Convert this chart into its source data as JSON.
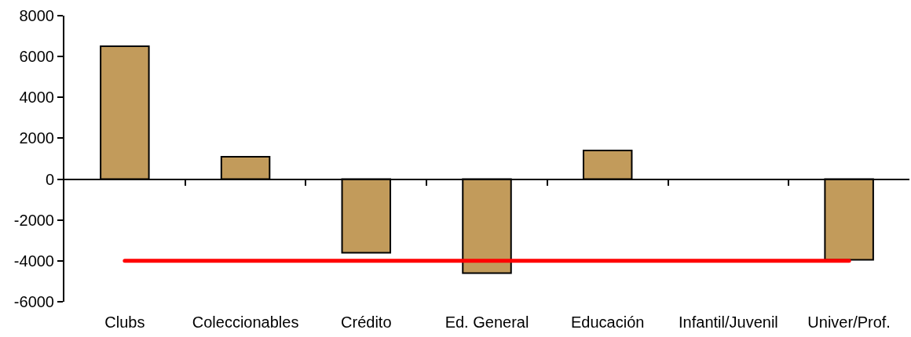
{
  "chart_data": {
    "type": "bar",
    "categories": [
      "Clubs",
      "Coleccionables",
      "Crédito",
      "Ed. General",
      "Educación",
      "Infantil/Juvenil",
      "Univer/Prof."
    ],
    "series": [
      {
        "color": "#c29b5b",
        "values": [
          6500,
          1100,
          -3600,
          -4600,
          1400,
          null,
          -3950
        ]
      },
      {
        "type": "line",
        "color": "#ff0000",
        "values": [
          -4000,
          -4000,
          -4000,
          -4000,
          -4000,
          -4000,
          -4000
        ]
      }
    ],
    "ylim": [
      -6000,
      8000
    ],
    "yticks": [
      -6000,
      -4000,
      -2000,
      0,
      2000,
      4000,
      6000,
      8000
    ]
  }
}
